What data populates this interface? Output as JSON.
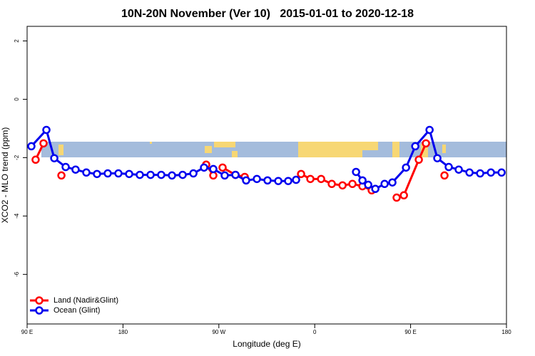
{
  "chart_data": {
    "type": "line",
    "title": "10N-20N November (Ver 10)   2015-01-01 to 2020-12-18",
    "x_label": "Longitude (deg E)",
    "y_label": "XCO2 - MLO trend (ppm)",
    "xlim": [
      90,
      540
    ],
    "ylim": [
      -7.7,
      2.5
    ],
    "xticks": [
      {
        "value": 90,
        "label": "90 E"
      },
      180,
      {
        "value": 270,
        "label": "90 W"
      },
      {
        "value": 360,
        "label": "0"
      },
      {
        "value": 450,
        "label": "90 E"
      },
      {
        "value": 540,
        "label": "180"
      }
    ],
    "yticks": [
      2,
      0,
      -2,
      -4,
      -6
    ],
    "legend": "bottom-left",
    "series": [
      {
        "name": "Land (Nadir&Glint)",
        "color": "#ff0000",
        "x": [
          98,
          105.4,
          null,
          122.2,
          null,
          258.1,
          264.8,
          null,
          273.5,
          285.6,
          294.3,
          null,
          347.2,
          355.9,
          366,
          376,
          386.1,
          395.4,
          404.8,
          413.5,
          null,
          436.9,
          443.7,
          457.7,
          464.4,
          null,
          481.8
        ],
        "values": [
          -2.07,
          -1.51,
          null,
          -2.61,
          null,
          -2.24,
          -2.61,
          null,
          -2.34,
          -2.59,
          -2.66,
          null,
          -2.56,
          -2.73,
          -2.73,
          -2.9,
          -2.95,
          -2.9,
          -2.98,
          -3.12,
          null,
          -3.37,
          -3.29,
          -2.07,
          -1.51,
          null,
          -2.61
        ]
      },
      {
        "name": "Ocean (Glint)",
        "color": "#0000ee",
        "x": [
          94,
          108.1,
          115.5,
          126.2,
          135.5,
          145.6,
          155.6,
          165.7,
          175.7,
          185.8,
          195.8,
          205.9,
          215.9,
          226,
          236,
          246.1,
          256.1,
          264.8,
          275.5,
          285.6,
          295.6,
          305.7,
          315.7,
          325.8,
          335.1,
          342.5,
          null,
          398.8,
          404.8,
          410.2,
          416.9,
          425.6,
          432.9,
          445.7,
          454.4,
          467.8,
          475.1,
          485.8,
          495.2,
          505.3,
          515.3,
          525.4,
          535.4
        ],
        "values": [
          -1.61,
          -1.05,
          -2.02,
          -2.32,
          -2.41,
          -2.51,
          -2.56,
          -2.54,
          -2.54,
          -2.56,
          -2.59,
          -2.59,
          -2.59,
          -2.61,
          -2.59,
          -2.54,
          -2.34,
          -2.39,
          -2.61,
          -2.59,
          -2.78,
          -2.73,
          -2.78,
          -2.8,
          -2.8,
          -2.76,
          null,
          -2.49,
          -2.78,
          -2.93,
          -3.07,
          -2.9,
          -2.85,
          -2.34,
          -1.61,
          -1.05,
          -2.02,
          -2.32,
          -2.41,
          -2.51,
          -2.54,
          -2.51,
          -2.51
        ]
      }
    ]
  }
}
